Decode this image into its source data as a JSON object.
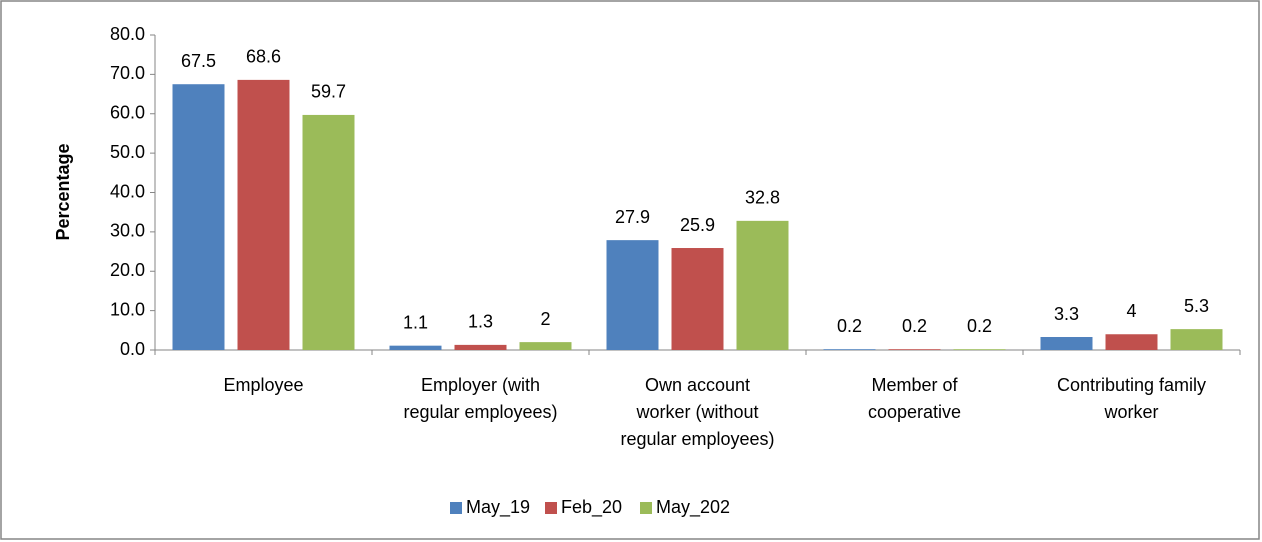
{
  "chart_data": {
    "type": "bar",
    "y_label": "Percentage",
    "categories": [
      "Employee",
      "Employer (with\nregular employees)",
      "Own account\nworker (without\nregular employees)",
      "Member of\ncooperative",
      "Contributing family\nworker"
    ],
    "series": [
      {
        "name": "May_19",
        "color": "#4f81bd",
        "values": [
          67.5,
          1.1,
          27.9,
          0.2,
          3.3
        ]
      },
      {
        "name": "Feb_20",
        "color": "#c0504d",
        "values": [
          68.6,
          1.3,
          25.9,
          0.2,
          4
        ]
      },
      {
        "name": "May_202",
        "color": "#9bbb59",
        "values": [
          59.7,
          2,
          32.8,
          0.2,
          5.3
        ]
      }
    ],
    "ylim": [
      0,
      80
    ],
    "yticks": [
      {
        "value": 0,
        "label": "0.0"
      },
      {
        "value": 10,
        "label": "10.0"
      },
      {
        "value": 20,
        "label": "20.0"
      },
      {
        "value": 30,
        "label": "30.0"
      },
      {
        "value": 40,
        "label": "40.0"
      },
      {
        "value": 50,
        "label": "50.0"
      },
      {
        "value": 60,
        "label": "60.0"
      },
      {
        "value": 70,
        "label": "70.0"
      },
      {
        "value": 80,
        "label": "80.0"
      }
    ],
    "grid": false,
    "legend": "bottom"
  }
}
